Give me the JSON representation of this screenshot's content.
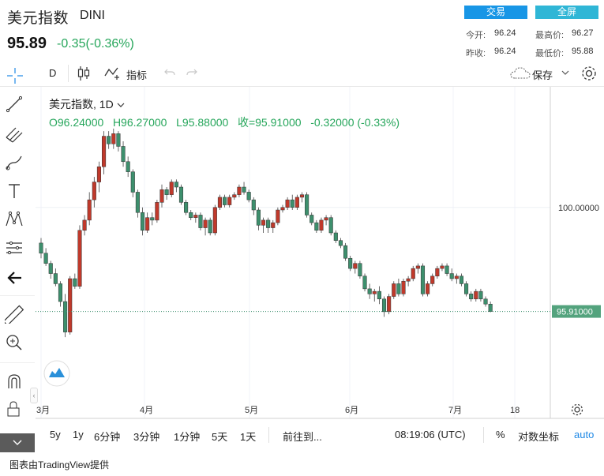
{
  "header": {
    "title": "美元指数",
    "code": "DINI",
    "price": "95.89",
    "change": "-0.35(-0.36%)",
    "trade_button": "交易",
    "fullscreen_button": "全屏",
    "stats": [
      {
        "label": "今开:",
        "value": "96.24"
      },
      {
        "label": "最高价:",
        "value": "96.27"
      },
      {
        "label": "昨收:",
        "value": "96.24"
      },
      {
        "label": "最低价:",
        "value": "95.88"
      }
    ]
  },
  "toolbar": {
    "interval": "D",
    "indicators_label": "指标",
    "save_label": "保存"
  },
  "legend": {
    "symbol_interval": "美元指数, 1D",
    "ohlc": "O96.24000   H96.27000   L95.88000   收=95.91000   -0.32000 (-0.33%)"
  },
  "axis": {
    "price_tick": "100.00000",
    "last_price_label": "95.91000",
    "time_ticks": [
      "3月",
      "4月",
      "5月",
      "6月",
      "7月",
      "18"
    ]
  },
  "bottom": {
    "ranges": [
      "5y",
      "1y",
      "6分钟",
      "3分钟",
      "1分钟",
      "5天",
      "1天"
    ],
    "goto": "前往到...",
    "time": "08:19:06 (UTC)",
    "percent": "%",
    "log": "对数坐标",
    "auto": "auto"
  },
  "credit": "图表由TradingView提供",
  "colors": {
    "up": "#c0392b",
    "down": "#3d8f6d",
    "price_label_bg": "#53a37d",
    "accent": "#1896e6"
  },
  "chart_data": {
    "type": "candlestick",
    "yrange": [
      94.5,
      103.5
    ],
    "ohlc": [
      [
        98.6,
        98.8,
        98.0,
        98.2
      ],
      [
        98.2,
        98.4,
        97.7,
        97.8
      ],
      [
        97.8,
        97.9,
        97.2,
        97.4
      ],
      [
        97.4,
        97.6,
        96.9,
        97.0
      ],
      [
        97.0,
        97.1,
        96.1,
        96.3
      ],
      [
        96.3,
        96.6,
        94.9,
        95.1
      ],
      [
        95.1,
        97.3,
        95.0,
        97.2
      ],
      [
        97.2,
        97.4,
        96.8,
        96.9
      ],
      [
        96.9,
        99.3,
        96.8,
        99.1
      ],
      [
        99.1,
        99.7,
        98.9,
        99.5
      ],
      [
        99.5,
        100.6,
        99.3,
        100.3
      ],
      [
        100.3,
        101.2,
        100.0,
        101.0
      ],
      [
        101.0,
        101.8,
        100.6,
        101.6
      ],
      [
        101.6,
        103.0,
        101.3,
        102.8
      ],
      [
        102.8,
        103.0,
        102.3,
        102.5
      ],
      [
        102.5,
        103.1,
        102.3,
        102.9
      ],
      [
        102.9,
        103.0,
        102.2,
        102.4
      ],
      [
        102.4,
        102.6,
        101.6,
        101.8
      ],
      [
        101.8,
        102.0,
        101.2,
        101.4
      ],
      [
        101.4,
        101.5,
        100.4,
        100.6
      ],
      [
        100.6,
        100.7,
        99.6,
        99.8
      ],
      [
        99.8,
        100.0,
        98.9,
        99.1
      ],
      [
        99.1,
        99.8,
        99.0,
        99.6
      ],
      [
        99.6,
        99.8,
        99.3,
        99.5
      ],
      [
        99.5,
        100.3,
        99.4,
        100.2
      ],
      [
        100.2,
        100.9,
        100.0,
        100.7
      ],
      [
        100.7,
        100.8,
        100.3,
        100.5
      ],
      [
        100.5,
        101.1,
        100.4,
        101.0
      ],
      [
        101.0,
        101.1,
        100.6,
        100.8
      ],
      [
        100.8,
        100.9,
        100.1,
        100.2
      ],
      [
        100.2,
        100.3,
        99.7,
        99.8
      ],
      [
        99.8,
        99.9,
        99.5,
        99.6
      ],
      [
        99.6,
        99.8,
        99.4,
        99.7
      ],
      [
        99.7,
        99.8,
        99.1,
        99.2
      ],
      [
        99.2,
        99.6,
        98.9,
        99.5
      ],
      [
        99.5,
        99.6,
        98.9,
        99.0
      ],
      [
        99.0,
        100.1,
        98.9,
        100.0
      ],
      [
        100.0,
        100.5,
        99.9,
        100.4
      ],
      [
        100.4,
        100.5,
        100.0,
        100.1
      ],
      [
        100.1,
        100.5,
        100.0,
        100.4
      ],
      [
        100.4,
        100.6,
        100.3,
        100.5
      ],
      [
        100.5,
        100.9,
        100.4,
        100.8
      ],
      [
        100.8,
        101.0,
        100.5,
        100.6
      ],
      [
        100.6,
        100.7,
        100.2,
        100.3
      ],
      [
        100.3,
        100.4,
        99.7,
        99.9
      ],
      [
        99.9,
        100.0,
        99.1,
        99.3
      ],
      [
        99.3,
        99.6,
        99.0,
        99.5
      ],
      [
        99.5,
        99.6,
        99.0,
        99.2
      ],
      [
        99.2,
        99.5,
        99.0,
        99.4
      ],
      [
        99.4,
        100.0,
        99.3,
        99.9
      ],
      [
        99.9,
        100.1,
        99.8,
        100.0
      ],
      [
        100.0,
        100.4,
        99.9,
        100.3
      ],
      [
        100.3,
        100.5,
        99.9,
        100.0
      ],
      [
        100.0,
        100.5,
        99.9,
        100.4
      ],
      [
        100.4,
        100.6,
        100.2,
        100.5
      ],
      [
        100.5,
        100.6,
        99.6,
        99.7
      ],
      [
        99.7,
        99.8,
        99.3,
        99.4
      ],
      [
        99.4,
        99.5,
        99.0,
        99.1
      ],
      [
        99.1,
        99.6,
        99.0,
        99.5
      ],
      [
        99.5,
        99.7,
        99.3,
        99.6
      ],
      [
        99.6,
        99.7,
        98.9,
        99.0
      ],
      [
        99.0,
        99.1,
        98.6,
        98.7
      ],
      [
        98.7,
        98.8,
        98.4,
        98.5
      ],
      [
        98.5,
        98.6,
        97.9,
        98.0
      ],
      [
        98.0,
        98.1,
        97.5,
        97.6
      ],
      [
        97.6,
        97.9,
        97.4,
        97.8
      ],
      [
        97.8,
        97.9,
        97.2,
        97.3
      ],
      [
        97.3,
        97.4,
        96.7,
        96.8
      ],
      [
        96.8,
        97.0,
        96.4,
        96.6
      ],
      [
        96.6,
        96.8,
        96.3,
        96.7
      ],
      [
        96.7,
        96.9,
        96.2,
        96.4
      ],
      [
        96.4,
        96.5,
        95.7,
        95.9
      ],
      [
        95.9,
        96.6,
        95.8,
        96.5
      ],
      [
        96.5,
        97.1,
        96.4,
        97.0
      ],
      [
        97.0,
        97.2,
        96.5,
        96.6
      ],
      [
        96.6,
        97.2,
        96.5,
        97.1
      ],
      [
        97.1,
        97.3,
        96.9,
        97.2
      ],
      [
        97.2,
        97.7,
        97.1,
        97.6
      ],
      [
        97.6,
        97.8,
        97.4,
        97.7
      ],
      [
        97.7,
        97.8,
        96.5,
        96.6
      ],
      [
        96.6,
        97.1,
        96.5,
        97.0
      ],
      [
        97.0,
        97.4,
        96.9,
        97.3
      ],
      [
        97.3,
        97.7,
        97.2,
        97.6
      ],
      [
        97.6,
        97.8,
        97.5,
        97.7
      ],
      [
        97.7,
        97.8,
        97.3,
        97.4
      ],
      [
        97.4,
        97.6,
        97.1,
        97.2
      ],
      [
        97.2,
        97.4,
        97.0,
        97.3
      ],
      [
        97.3,
        97.4,
        96.9,
        97.0
      ],
      [
        97.0,
        97.1,
        96.5,
        96.6
      ],
      [
        96.6,
        96.7,
        96.3,
        96.4
      ],
      [
        96.4,
        96.8,
        96.3,
        96.7
      ],
      [
        96.7,
        96.8,
        96.3,
        96.4
      ],
      [
        96.4,
        96.5,
        96.1,
        96.2
      ],
      [
        96.2,
        96.3,
        95.88,
        95.91
      ]
    ],
    "y_tick_labels": [
      "100.00000"
    ],
    "x_tick_labels": [
      "3月",
      "4月",
      "5月",
      "6月",
      "7月",
      "18"
    ],
    "last_value": 95.91
  }
}
